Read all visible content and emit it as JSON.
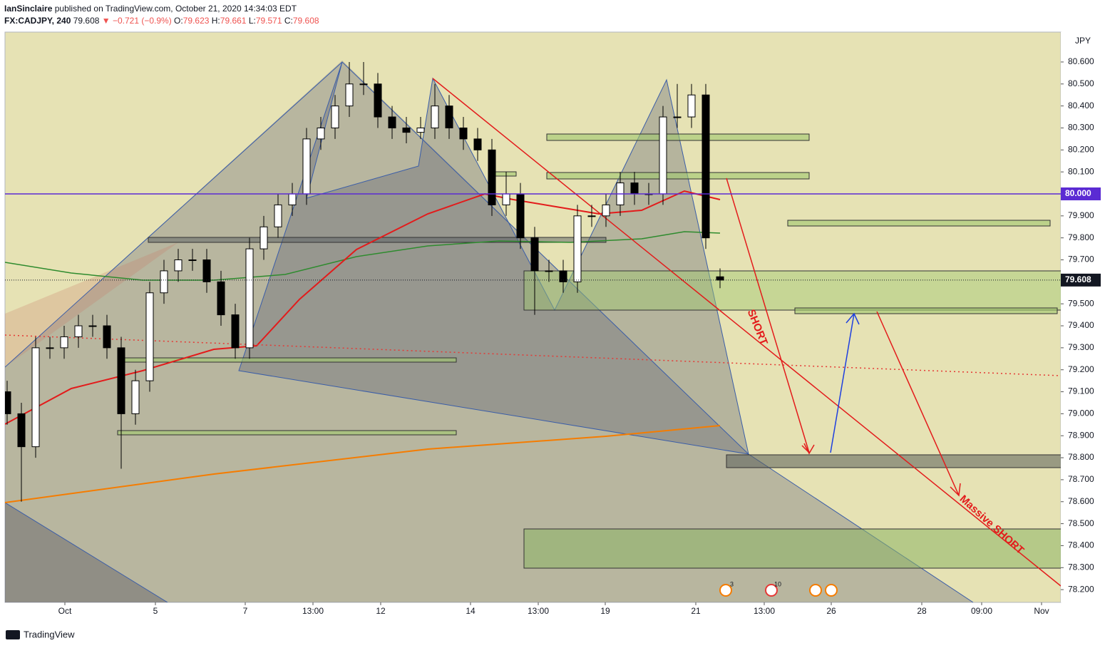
{
  "header": {
    "author": "IanSinclaire",
    "published": "published on TradingView.com, October 21, 2020 14:34:03 EDT",
    "symbol": "FX:CADJPY, 240",
    "last": "79.608",
    "change": "▼ −0.721 (−0.9%)",
    "open_label": "O:",
    "open": "79.623",
    "high_label": "H:",
    "high": "79.661",
    "low_label": "L:",
    "low": "79.571",
    "close_label": "C:",
    "close": "79.608"
  },
  "footer": {
    "brand": "TradingView"
  },
  "chart_data": {
    "type": "candlestick",
    "currency": "JPY",
    "open": [
      79.1,
      79.0,
      78.85,
      79.3,
      79.3,
      79.35,
      79.4,
      79.4,
      79.3,
      79.0,
      79.15,
      79.55,
      79.65,
      79.7,
      79.7,
      79.6,
      79.45,
      79.3,
      79.75,
      79.85,
      79.95,
      80.0,
      80.25,
      80.3,
      80.4,
      80.5,
      80.5,
      80.35,
      80.3,
      80.28,
      80.3,
      80.4,
      80.3,
      80.25,
      80.2,
      79.95,
      80.0,
      79.8,
      79.65,
      79.65,
      79.6,
      79.9,
      79.9,
      79.95,
      80.05,
      80.0,
      80.0,
      80.35,
      80.35,
      80.45,
      79.623
    ],
    "high": [
      79.15,
      79.05,
      79.35,
      79.35,
      79.4,
      79.45,
      79.45,
      79.45,
      79.35,
      79.2,
      79.6,
      79.7,
      79.75,
      79.75,
      79.75,
      79.65,
      79.5,
      79.8,
      79.9,
      80.0,
      80.05,
      80.3,
      80.35,
      80.45,
      80.6,
      80.6,
      80.55,
      80.4,
      80.35,
      80.35,
      80.5,
      80.45,
      80.35,
      80.3,
      80.25,
      80.1,
      80.05,
      79.85,
      79.7,
      79.7,
      79.95,
      79.95,
      80.0,
      80.1,
      80.1,
      80.05,
      80.4,
      80.5,
      80.5,
      80.5,
      79.661
    ],
    "low": [
      78.95,
      78.6,
      78.8,
      79.25,
      79.25,
      79.3,
      79.35,
      79.25,
      78.75,
      78.95,
      79.1,
      79.5,
      79.6,
      79.65,
      79.55,
      79.4,
      79.25,
      79.25,
      79.7,
      79.8,
      79.9,
      79.95,
      80.2,
      80.25,
      80.35,
      80.45,
      80.3,
      80.25,
      80.23,
      80.25,
      80.25,
      80.25,
      80.2,
      80.15,
      79.9,
      79.9,
      79.75,
      79.45,
      79.6,
      79.55,
      79.55,
      79.85,
      79.85,
      79.9,
      79.95,
      79.95,
      79.95,
      80.3,
      80.3,
      79.75,
      79.571
    ],
    "close": [
      79.0,
      78.85,
      79.3,
      79.3,
      79.35,
      79.4,
      79.4,
      79.3,
      79.0,
      79.15,
      79.55,
      79.65,
      79.7,
      79.7,
      79.6,
      79.45,
      79.3,
      79.75,
      79.85,
      79.95,
      80.0,
      80.25,
      80.3,
      80.4,
      80.5,
      80.5,
      80.35,
      80.3,
      80.28,
      80.3,
      80.4,
      80.3,
      80.25,
      80.2,
      79.95,
      80.0,
      79.8,
      79.65,
      79.65,
      79.6,
      79.9,
      79.9,
      79.95,
      80.05,
      80.0,
      80.0,
      80.35,
      80.35,
      80.45,
      79.8,
      79.608
    ],
    "xlim": [
      -0.15,
      73.9
    ],
    "xticks": [
      {
        "value": 4.05,
        "label": "Oct"
      },
      {
        "value": 10.4,
        "label": "5"
      },
      {
        "value": 16.7,
        "label": "7"
      },
      {
        "value": 21.45,
        "label": "13:00"
      },
      {
        "value": 26.2,
        "label": "12"
      },
      {
        "value": 32.5,
        "label": "14"
      },
      {
        "value": 37.25,
        "label": "13:00"
      },
      {
        "value": 41.95,
        "label": "19"
      },
      {
        "value": 48.3,
        "label": "21"
      },
      {
        "value": 53.1,
        "label": "13:00"
      },
      {
        "value": 57.8,
        "label": "26"
      },
      {
        "value": 64.15,
        "label": "28"
      },
      {
        "value": 68.35,
        "label": "09:00"
      },
      {
        "value": 72.55,
        "label": "Nov"
      }
    ],
    "ylim": [
      78.142,
      80.736
    ],
    "yticks": [
      {
        "value": 78.2,
        "label": "78.200"
      },
      {
        "value": 78.3,
        "label": "78.300"
      },
      {
        "value": 78.4,
        "label": "78.400"
      },
      {
        "value": 78.5,
        "label": "78.500"
      },
      {
        "value": 78.6,
        "label": "78.600"
      },
      {
        "value": 78.7,
        "label": "78.700"
      },
      {
        "value": 78.8,
        "label": "78.800"
      },
      {
        "value": 78.9,
        "label": "78.900"
      },
      {
        "value": 79.0,
        "label": "79.000"
      },
      {
        "value": 79.1,
        "label": "79.100"
      },
      {
        "value": 79.2,
        "label": "79.200"
      },
      {
        "value": 79.3,
        "label": "79.300"
      },
      {
        "value": 79.4,
        "label": "79.400"
      },
      {
        "value": 79.5,
        "label": "79.500"
      },
      {
        "value": 79.6,
        "label": "79.600"
      },
      {
        "value": 79.7,
        "label": "79.700"
      },
      {
        "value": 79.8,
        "label": "79.800"
      },
      {
        "value": 79.9,
        "label": "79.900"
      },
      {
        "value": 80.0,
        "label": "80.000"
      },
      {
        "value": 80.1,
        "label": "80.100"
      },
      {
        "value": 80.2,
        "label": "80.200"
      },
      {
        "value": 80.3,
        "label": "80.300"
      },
      {
        "value": 80.4,
        "label": "80.400"
      },
      {
        "value": 80.5,
        "label": "80.500"
      },
      {
        "value": 80.6,
        "label": "80.600"
      }
    ],
    "price_lines": [
      {
        "value": 80.0,
        "label": "80.000",
        "color": "#5b2bd3",
        "solid": true
      },
      {
        "value": 79.608,
        "label": "79.608",
        "color": "#131722",
        "solid": false
      }
    ],
    "annotations": [
      {
        "text": "SHORT"
      },
      {
        "text": "Massive SHORT"
      }
    ],
    "events": [
      "3",
      "10"
    ]
  }
}
